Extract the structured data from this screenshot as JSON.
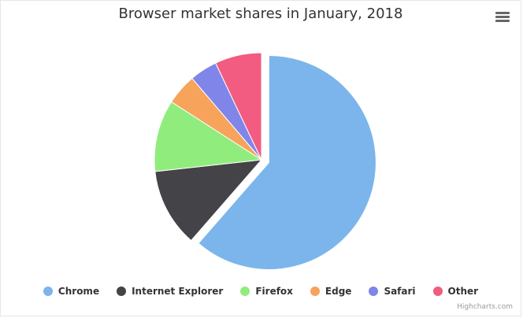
{
  "chart_data": {
    "type": "pie",
    "title": "Browser market shares in January, 2018",
    "series": [
      {
        "slices": [
          {
            "name": "Chrome",
            "value": 61.41,
            "color": "#7cb5ec",
            "sliced": true
          },
          {
            "name": "Internet Explorer",
            "value": 11.84,
            "color": "#434348",
            "sliced": false
          },
          {
            "name": "Firefox",
            "value": 10.85,
            "color": "#90ed7d",
            "sliced": false
          },
          {
            "name": "Edge",
            "value": 4.67,
            "color": "#f7a35c",
            "sliced": false
          },
          {
            "name": "Safari",
            "value": 4.18,
            "color": "#8085e9",
            "sliced": false
          },
          {
            "name": "Other",
            "value": 7.05,
            "color": "#f15c80",
            "sliced": false
          }
        ]
      }
    ],
    "legend_position": "bottom"
  },
  "credits": "Highcharts.com",
  "menu_icon": "hamburger-menu-icon"
}
